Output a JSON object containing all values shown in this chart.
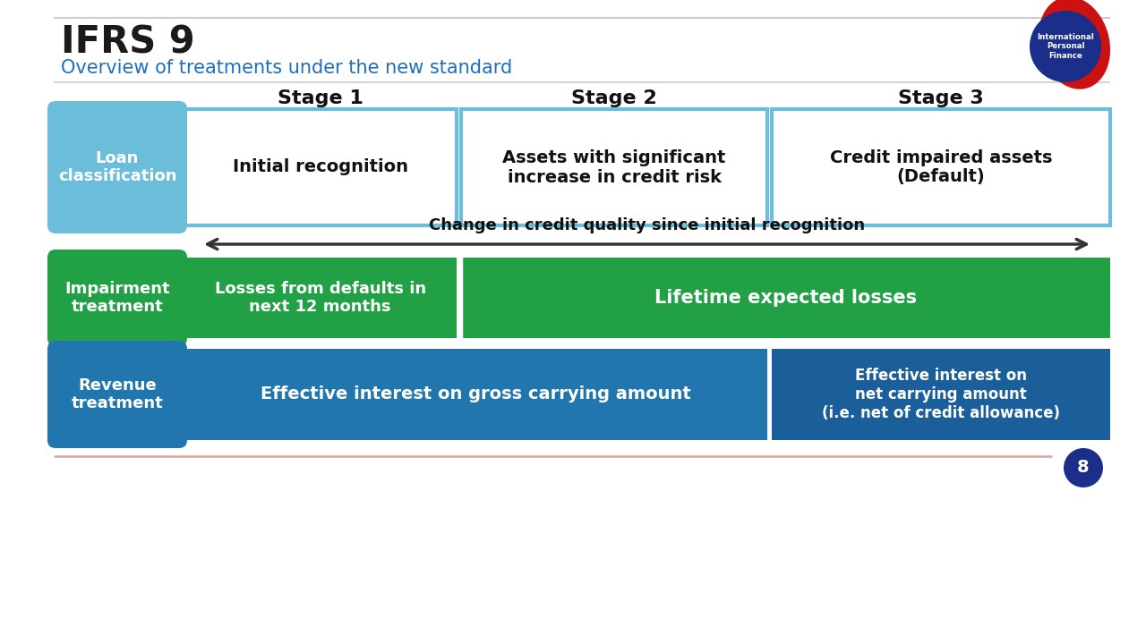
{
  "title": "IFRS 9",
  "subtitle": "Overview of treatments under the new standard",
  "title_color": "#1a1a1a",
  "subtitle_color": "#1E6FBF",
  "bg_color": "#FFFFFF",
  "light_blue": "#6BBDD9",
  "medium_blue": "#2176AE",
  "green": "#22A045",
  "stage_labels": [
    "Stage 1",
    "Stage 2",
    "Stage 3"
  ],
  "loan_class_label": "Loan\nclassification",
  "stage1_box_text": "Initial recognition",
  "stage2_box_text": "Assets with significant\nincrease in credit risk",
  "stage3_box_text": "Credit impaired assets\n(Default)",
  "arrow_text": "Change in credit quality since initial recognition",
  "impairment_label": "Impairment\ntreatment",
  "impairment_s1_text": "Losses from defaults in\nnext 12 months",
  "impairment_s23_text": "Lifetime expected losses",
  "revenue_label": "Revenue\ntreatment",
  "revenue_s12_text": "Effective interest on gross carrying amount",
  "revenue_s3_text": "Effective interest on\nnet carrying amount\n(i.e. net of credit allowance)",
  "page_number": "8",
  "footer_line_color": "#E8A0A0",
  "header_line_color": "#CCCCCC",
  "logo_red": "#CC1111",
  "logo_blue": "#1A2E8A"
}
